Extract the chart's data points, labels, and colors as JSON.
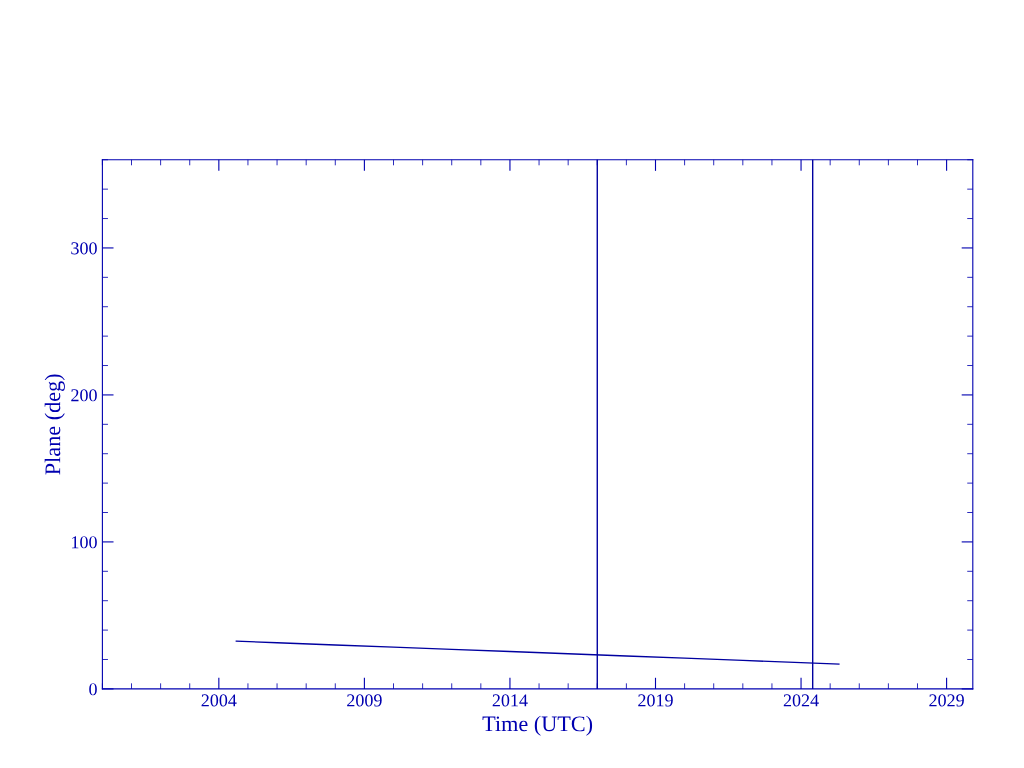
{
  "chart_data": {
    "type": "line",
    "xlabel": "Time (UTC)",
    "ylabel": "Plane (deg)",
    "x": [
      2004.6,
      2006,
      2008,
      2010,
      2012,
      2014,
      2016,
      2018,
      2020,
      2022,
      2024,
      2025.3
    ],
    "series": [
      {
        "color": "#0000a0",
        "values": [
          32.5,
          31.4,
          29.9,
          28.4,
          26.9,
          25.4,
          23.9,
          22.4,
          20.9,
          19.4,
          17.9,
          16.9
        ]
      }
    ],
    "xlim": [
      2000,
      2029.9
    ],
    "xticks": [
      2004,
      2009,
      2014,
      2019,
      2024,
      2029
    ],
    "ylim": [
      0,
      360
    ],
    "yticks": [
      0,
      100,
      200,
      300
    ],
    "ref_lines": [
      {
        "axis": "x",
        "value": 2017.0,
        "color": "#0000a0"
      },
      {
        "axis": "x",
        "value": 2024.4,
        "color": "#0000a0"
      }
    ],
    "grid": false,
    "legend": false,
    "marker": "none",
    "line_style": "solid"
  }
}
